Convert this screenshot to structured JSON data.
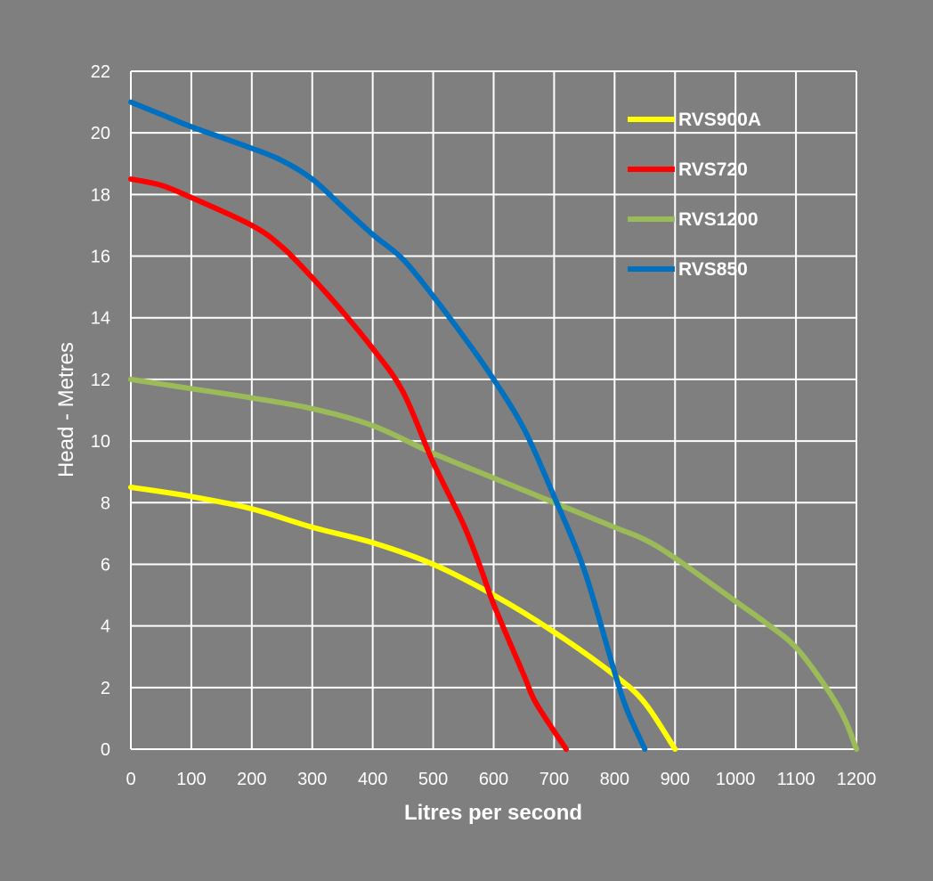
{
  "chart_data": {
    "type": "line",
    "title": "",
    "xlabel": "Litres per second",
    "ylabel": "Head - Metres",
    "xlim": [
      0,
      1200
    ],
    "ylim": [
      0,
      22
    ],
    "x_ticks": [
      0,
      100,
      200,
      300,
      400,
      500,
      600,
      700,
      800,
      900,
      1000,
      1100,
      1200
    ],
    "y_ticks": [
      0,
      2,
      4,
      6,
      8,
      10,
      12,
      14,
      16,
      18,
      20,
      22
    ],
    "grid": true,
    "legend_position": "top-right",
    "series": [
      {
        "name": "RVS900A",
        "color": "#ffff00",
        "points": [
          [
            0,
            8.5
          ],
          [
            100,
            8.2
          ],
          [
            200,
            7.8
          ],
          [
            300,
            7.2
          ],
          [
            400,
            6.7
          ],
          [
            500,
            6.0
          ],
          [
            600,
            5.0
          ],
          [
            700,
            3.8
          ],
          [
            800,
            2.4
          ],
          [
            850,
            1.5
          ],
          [
            900,
            0
          ]
        ]
      },
      {
        "name": "RVS720",
        "color": "#ff0000",
        "points": [
          [
            0,
            18.5
          ],
          [
            50,
            18.3
          ],
          [
            100,
            17.9
          ],
          [
            200,
            17.0
          ],
          [
            250,
            16.3
          ],
          [
            300,
            15.3
          ],
          [
            350,
            14.2
          ],
          [
            400,
            13.0
          ],
          [
            450,
            11.6
          ],
          [
            500,
            9.3
          ],
          [
            550,
            7.3
          ],
          [
            580,
            5.8
          ],
          [
            600,
            4.7
          ],
          [
            650,
            2.4
          ],
          [
            670,
            1.5
          ],
          [
            720,
            0
          ]
        ]
      },
      {
        "name": "RVS1200",
        "color": "#9bbb59",
        "points": [
          [
            0,
            12.0
          ],
          [
            100,
            11.7
          ],
          [
            200,
            11.4
          ],
          [
            300,
            11.05
          ],
          [
            400,
            10.5
          ],
          [
            500,
            9.6
          ],
          [
            600,
            8.8
          ],
          [
            700,
            8.0
          ],
          [
            800,
            7.2
          ],
          [
            850,
            6.8
          ],
          [
            900,
            6.2
          ],
          [
            1000,
            4.8
          ],
          [
            1050,
            4.1
          ],
          [
            1100,
            3.3
          ],
          [
            1150,
            2.0
          ],
          [
            1180,
            1.0
          ],
          [
            1200,
            0
          ]
        ]
      },
      {
        "name": "RVS850",
        "color": "#0070c0",
        "points": [
          [
            0,
            21.0
          ],
          [
            50,
            20.6
          ],
          [
            100,
            20.2
          ],
          [
            200,
            19.5
          ],
          [
            250,
            19.1
          ],
          [
            300,
            18.5
          ],
          [
            350,
            17.6
          ],
          [
            400,
            16.7
          ],
          [
            450,
            15.9
          ],
          [
            500,
            14.7
          ],
          [
            550,
            13.4
          ],
          [
            600,
            12.0
          ],
          [
            650,
            10.4
          ],
          [
            700,
            8.2
          ],
          [
            750,
            5.8
          ],
          [
            800,
            2.5
          ],
          [
            820,
            1.3
          ],
          [
            850,
            0
          ]
        ]
      }
    ]
  }
}
